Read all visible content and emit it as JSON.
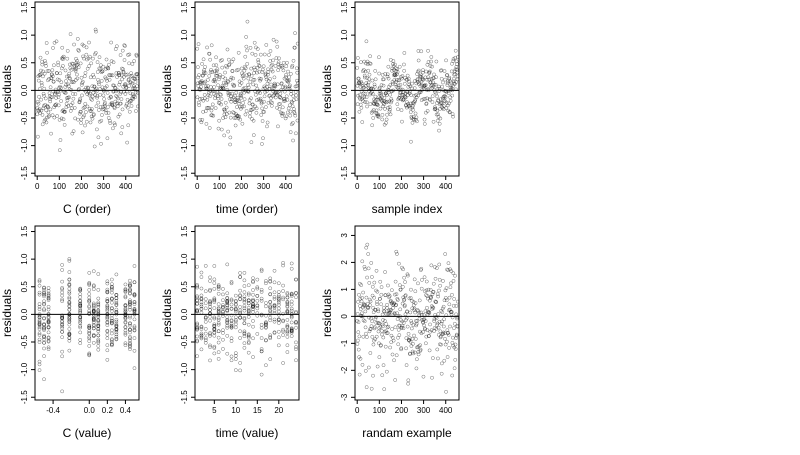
{
  "chart_data": [
    {
      "type": "scatter",
      "xlabel": "C (order)",
      "ylabel": "residuals",
      "xlim": [
        -10,
        460
      ],
      "ylim": [
        -1.55,
        1.6
      ],
      "xticks": [
        0,
        100,
        200,
        300,
        400
      ],
      "yticks": [
        -1.5,
        -1.0,
        -0.5,
        0.0,
        0.5,
        1.0,
        1.5
      ],
      "xtick_labels": [
        "0",
        "100",
        "200",
        "300",
        "400"
      ],
      "ytick_labels": [
        "-1.5",
        "-1.0",
        "-0.5",
        "0.0",
        "0.5",
        "1.0",
        "1.5"
      ],
      "reference_line_y": 0,
      "grid": false,
      "generator": {
        "kind": "order",
        "seed": 11,
        "n": 460,
        "sd": 0.38,
        "x_min": 0,
        "x_max": 455
      }
    },
    {
      "type": "scatter",
      "xlabel": "time (order)",
      "ylabel": "residuals",
      "xlim": [
        -10,
        460
      ],
      "ylim": [
        -1.55,
        1.6
      ],
      "xticks": [
        0,
        100,
        200,
        300,
        400
      ],
      "yticks": [
        -1.5,
        -1.0,
        -0.5,
        0.0,
        0.5,
        1.0,
        1.5
      ],
      "xtick_labels": [
        "0",
        "100",
        "200",
        "300",
        "400"
      ],
      "ytick_labels": [
        "-1.5",
        "-1.0",
        "-0.5",
        "0.0",
        "0.5",
        "1.0",
        "1.5"
      ],
      "reference_line_y": 0,
      "grid": false,
      "generator": {
        "kind": "order",
        "seed": 23,
        "n": 460,
        "sd": 0.38,
        "x_min": 0,
        "x_max": 455
      }
    },
    {
      "type": "scatter",
      "xlabel": "sample index",
      "ylabel": "residuals",
      "xlim": [
        -10,
        460
      ],
      "ylim": [
        -1.55,
        1.6
      ],
      "xticks": [
        0,
        100,
        200,
        300,
        400
      ],
      "yticks": [
        -1.5,
        -1.0,
        -0.5,
        0.0,
        0.5,
        1.0,
        1.5
      ],
      "xtick_labels": [
        "0",
        "100",
        "200",
        "300",
        "400"
      ],
      "ytick_labels": [
        "-1.5",
        "-1.0",
        "-0.5",
        "0.0",
        "0.5",
        "1.0",
        "1.5"
      ],
      "reference_line_y": 0,
      "grid": false,
      "generator": {
        "kind": "index",
        "seed": 37,
        "n": 460,
        "sd": 0.25,
        "x_min": 0,
        "x_max": 455
      }
    },
    {
      "type": "scatter",
      "xlabel": "C (value)",
      "ylabel": "residuals",
      "xlim": [
        -0.6,
        0.55
      ],
      "ylim": [
        -1.55,
        1.6
      ],
      "xticks": [
        -0.4,
        0.0,
        0.2,
        0.4
      ],
      "yticks": [
        -1.5,
        -1.0,
        -0.5,
        0.0,
        0.5,
        1.0,
        1.5
      ],
      "xtick_labels": [
        "-0.4",
        "0.0",
        "0.2",
        "0.4"
      ],
      "ytick_labels": [
        "-1.5",
        "-1.0",
        "-0.5",
        "0.0",
        "0.5",
        "1.0",
        "1.5"
      ],
      "reference_line_y": 0,
      "grid": false,
      "generator": {
        "kind": "grouped",
        "seed": 41,
        "n": 460,
        "sd": 0.38,
        "x_min": -0.55,
        "x_max": 0.5,
        "levels": [
          -0.55,
          -0.5,
          -0.45,
          -0.3,
          -0.22,
          -0.1,
          0.0,
          0.05,
          0.1,
          0.2,
          0.25,
          0.3,
          0.4,
          0.45,
          0.5
        ]
      }
    },
    {
      "type": "scatter",
      "xlabel": "time (value)",
      "ylabel": "residuals",
      "xlim": [
        0.5,
        24.7
      ],
      "ylim": [
        -1.55,
        1.6
      ],
      "xticks": [
        5,
        10,
        15,
        20
      ],
      "yticks": [
        -1.5,
        -1.0,
        -0.5,
        0.0,
        0.5,
        1.0,
        1.5
      ],
      "xtick_labels": [
        "5",
        "10",
        "15",
        "20"
      ],
      "ytick_labels": [
        "-1.5",
        "-1.0",
        "-0.5",
        "0.0",
        "0.5",
        "1.0",
        "1.5"
      ],
      "reference_line_y": 0,
      "grid": false,
      "generator": {
        "kind": "grouped",
        "seed": 53,
        "n": 460,
        "sd": 0.38,
        "x_min": 1,
        "x_max": 24,
        "levels": [
          1,
          2,
          3,
          4,
          5,
          6,
          7,
          8,
          9,
          10,
          11,
          12,
          13,
          14,
          15,
          16,
          17,
          18,
          19,
          20,
          21,
          22,
          23,
          24
        ]
      }
    },
    {
      "type": "scatter",
      "xlabel": "randam example",
      "ylabel": "residuals",
      "xlim": [
        -10,
        460
      ],
      "ylim": [
        -3.1,
        3.35
      ],
      "xticks": [
        0,
        100,
        200,
        300,
        400
      ],
      "yticks": [
        -3,
        -2,
        -1,
        0,
        1,
        2,
        3
      ],
      "xtick_labels": [
        "0",
        "100",
        "200",
        "300",
        "400"
      ],
      "ytick_labels": [
        "-3",
        "-2",
        "-1",
        "0",
        "1",
        "2",
        "3"
      ],
      "reference_line_y": 0,
      "grid": false,
      "generator": {
        "kind": "order",
        "seed": 67,
        "n": 460,
        "sd": 1.0,
        "x_min": 0,
        "x_max": 455
      }
    }
  ]
}
